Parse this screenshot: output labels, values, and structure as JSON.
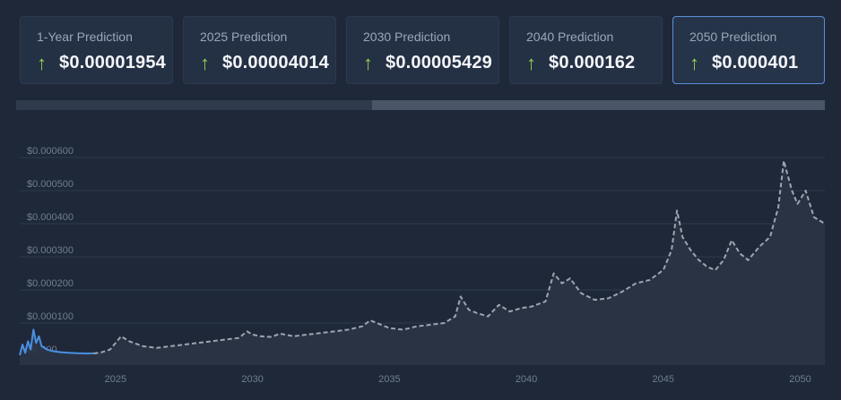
{
  "cards": [
    {
      "label": "1-Year Prediction",
      "value": "$0.00001954",
      "arrow": "up-arrow-icon"
    },
    {
      "label": "2025 Prediction",
      "value": "$0.00004014",
      "arrow": "up-arrow-icon"
    },
    {
      "label": "2030 Prediction",
      "value": "$0.00005429",
      "arrow": "up-arrow-icon"
    },
    {
      "label": "2040 Prediction",
      "value": "$0.000162",
      "arrow": "up-arrow-icon"
    },
    {
      "label": "2050 Prediction",
      "value": "$0.000401",
      "arrow": "up-arrow-icon"
    }
  ],
  "colors": {
    "background": "#1f2838",
    "card": "#243044",
    "active_border": "#5b8fd8",
    "arrow_up": "#8fd14f",
    "historical_line": "#4a90e2",
    "prediction_line": "#9ea5b0"
  },
  "scrollbar": {
    "thumb_start_fraction": 0.44,
    "thumb_end_fraction": 1.0
  },
  "chart_data": {
    "type": "line",
    "title": "",
    "xlabel": "",
    "ylabel": "",
    "x_ticks": [
      "2025",
      "2030",
      "2035",
      "2040",
      "2045",
      "2050"
    ],
    "y_ticks": [
      "$0.000600",
      "$0.000500",
      "$0.000400",
      "$0.000300",
      "$0.000200",
      "$0.000100",
      "$0.000"
    ],
    "ylim": [
      0,
      0.0006
    ],
    "xlim": [
      2021.5,
      2050.9
    ],
    "grid": true,
    "series": [
      {
        "style": "solid",
        "color": "#4a90e2",
        "x": [
          2021.5,
          2021.6,
          2021.7,
          2021.8,
          2021.9,
          2022.0,
          2022.1,
          2022.2,
          2022.3,
          2022.5,
          2022.7,
          2023.0,
          2023.3,
          2023.6,
          2024.0,
          2024.2
        ],
        "y": [
          3e-06,
          3.5e-05,
          1e-05,
          4.5e-05,
          2e-05,
          8e-05,
          4e-05,
          6e-05,
          3e-05,
          2e-05,
          1.5e-05,
          1.2e-05,
          1e-05,
          9e-06,
          8e-06,
          9e-06
        ]
      },
      {
        "style": "dashed",
        "color": "#9ea5b0",
        "x": [
          2024.2,
          2024.5,
          2024.8,
          2025.0,
          2025.2,
          2025.5,
          2026.0,
          2026.5,
          2027.0,
          2027.5,
          2028.0,
          2028.5,
          2029.0,
          2029.5,
          2029.8,
          2030.0,
          2030.3,
          2030.7,
          2031.0,
          2031.5,
          2032.0,
          2032.5,
          2033.0,
          2033.5,
          2034.0,
          2034.3,
          2034.7,
          2035.0,
          2035.5,
          2036.0,
          2036.5,
          2037.0,
          2037.4,
          2037.6,
          2037.9,
          2038.2,
          2038.6,
          2039.0,
          2039.4,
          2039.8,
          2040.2,
          2040.7,
          2041.0,
          2041.3,
          2041.6,
          2042.0,
          2042.5,
          2043.0,
          2043.5,
          2044.0,
          2044.5,
          2045.0,
          2045.3,
          2045.5,
          2045.7,
          2046.0,
          2046.3,
          2046.6,
          2046.9,
          2047.2,
          2047.5,
          2047.8,
          2048.1,
          2048.5,
          2048.9,
          2049.2,
          2049.4,
          2049.7,
          2049.9,
          2050.2,
          2050.5,
          2050.9
        ],
        "y": [
          8e-06,
          1.2e-05,
          2e-05,
          4e-05,
          6e-05,
          4.5e-05,
          3e-05,
          2.5e-05,
          3e-05,
          3.5e-05,
          4e-05,
          4.5e-05,
          5e-05,
          5.5e-05,
          7.5e-05,
          6.5e-05,
          6e-05,
          5.8e-05,
          6.8e-05,
          6e-05,
          6.5e-05,
          7e-05,
          7.5e-05,
          8e-05,
          9e-05,
          0.000108,
          9.5e-05,
          8.5e-05,
          8e-05,
          9e-05,
          9.5e-05,
          0.0001,
          0.00012,
          0.00018,
          0.00014,
          0.00013,
          0.00012,
          0.000155,
          0.000135,
          0.000145,
          0.00015,
          0.000165,
          0.00025,
          0.00022,
          0.000235,
          0.00019,
          0.00017,
          0.000175,
          0.000195,
          0.00022,
          0.00023,
          0.00026,
          0.00032,
          0.00044,
          0.00036,
          0.00032,
          0.00029,
          0.00027,
          0.00026,
          0.00029,
          0.00035,
          0.00031,
          0.00029,
          0.00033,
          0.00036,
          0.00045,
          0.00059,
          0.0005,
          0.00046,
          0.0005,
          0.00042,
          0.0004
        ]
      }
    ]
  }
}
